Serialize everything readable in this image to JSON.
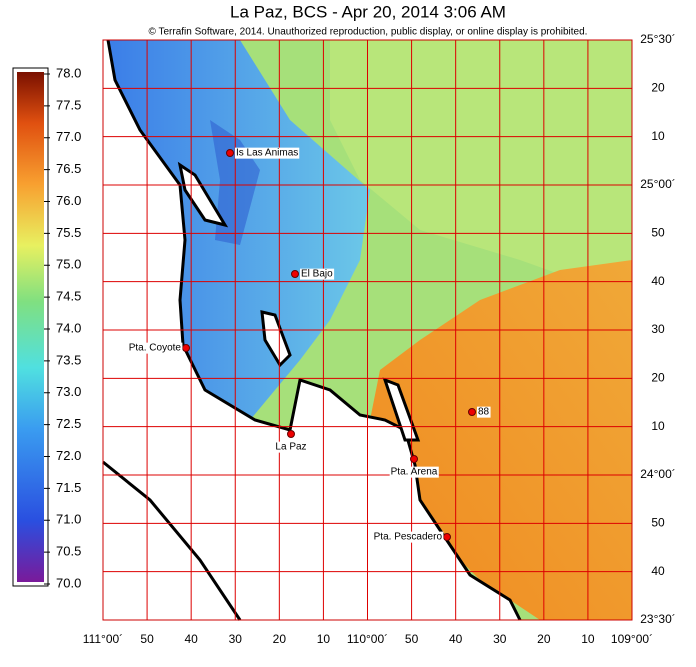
{
  "header": {
    "title": "La Paz, BCS - Apr 20, 2014 3:06 AM",
    "copyright": "© Terrafin Software,  2014.  Unauthorized reproduction, public display, or online display is prohibited."
  },
  "colorbar": {
    "labels": [
      "78.0",
      "77.5",
      "77.0",
      "76.5",
      "76.0",
      "75.5",
      "75.0",
      "74.5",
      "74.0",
      "73.5",
      "73.0",
      "72.5",
      "72.0",
      "71.5",
      "71.0",
      "70.5",
      "70.0"
    ]
  },
  "longitude_labels": [
    "111°00´",
    "50",
    "40",
    "30",
    "20",
    "10",
    "110°00´",
    "50",
    "40",
    "30",
    "20",
    "10",
    "109°00´"
  ],
  "latitude_labels": [
    "25°30´",
    "20",
    "10",
    "25°00´",
    "50",
    "40",
    "30",
    "20",
    "10",
    "24°00´",
    "50",
    "40",
    "23°30´"
  ],
  "places": [
    {
      "label": "Is Las Animas"
    },
    {
      "label": "El Bajo"
    },
    {
      "label": "Pta. Coyote"
    },
    {
      "label": "La Paz"
    },
    {
      "label": "88"
    },
    {
      "label": "Pta. Arena"
    },
    {
      "label": "Pta. Pescadero"
    }
  ]
}
